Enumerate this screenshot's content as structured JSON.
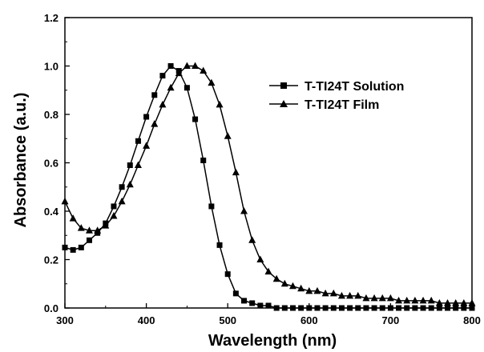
{
  "chart_data": {
    "type": "line",
    "xlabel": "Wavelength (nm)",
    "ylabel": "Absorbance (a.u.)",
    "xlim": [
      300,
      800
    ],
    "ylim": [
      0.0,
      1.2
    ],
    "xticks": [
      "300",
      "400",
      "500",
      "600",
      "700",
      "800"
    ],
    "yticks": [
      "0.0",
      "0.2",
      "0.4",
      "0.6",
      "0.8",
      "1.0",
      "1.2"
    ],
    "grid": false,
    "legend_position": "top-right",
    "series": [
      {
        "name": "T-TI24T Solution",
        "marker": "square",
        "x": [
          300,
          310,
          320,
          330,
          340,
          350,
          360,
          370,
          380,
          390,
          400,
          410,
          420,
          430,
          440,
          450,
          460,
          470,
          480,
          490,
          500,
          510,
          520,
          530,
          540,
          550,
          560,
          570,
          580,
          590,
          600,
          610,
          620,
          630,
          640,
          650,
          660,
          670,
          680,
          690,
          700,
          710,
          720,
          730,
          740,
          750,
          760,
          770,
          780,
          790,
          800
        ],
        "y": [
          0.25,
          0.24,
          0.25,
          0.28,
          0.31,
          0.35,
          0.42,
          0.5,
          0.59,
          0.69,
          0.79,
          0.88,
          0.96,
          1.0,
          0.98,
          0.91,
          0.78,
          0.61,
          0.42,
          0.26,
          0.14,
          0.06,
          0.03,
          0.02,
          0.01,
          0.01,
          0.0,
          0.0,
          0.0,
          0.0,
          0.0,
          0.0,
          0.0,
          0.0,
          0.0,
          0.0,
          0.0,
          0.0,
          0.0,
          0.0,
          0.0,
          0.0,
          0.0,
          0.0,
          0.0,
          0.0,
          0.0,
          0.0,
          0.0,
          0.0,
          0.0
        ]
      },
      {
        "name": "T-TI24T Film",
        "marker": "triangle",
        "x": [
          300,
          310,
          320,
          330,
          340,
          350,
          360,
          370,
          380,
          390,
          400,
          410,
          420,
          430,
          440,
          450,
          460,
          470,
          480,
          490,
          500,
          510,
          520,
          530,
          540,
          550,
          560,
          570,
          580,
          590,
          600,
          610,
          620,
          630,
          640,
          650,
          660,
          670,
          680,
          690,
          700,
          710,
          720,
          730,
          740,
          750,
          760,
          770,
          780,
          790,
          800
        ],
        "y": [
          0.44,
          0.37,
          0.33,
          0.32,
          0.32,
          0.34,
          0.38,
          0.44,
          0.51,
          0.59,
          0.67,
          0.76,
          0.84,
          0.91,
          0.97,
          1.0,
          1.0,
          0.98,
          0.93,
          0.84,
          0.71,
          0.56,
          0.4,
          0.28,
          0.2,
          0.15,
          0.12,
          0.1,
          0.09,
          0.08,
          0.07,
          0.07,
          0.06,
          0.06,
          0.05,
          0.05,
          0.05,
          0.04,
          0.04,
          0.04,
          0.04,
          0.03,
          0.03,
          0.03,
          0.03,
          0.03,
          0.02,
          0.02,
          0.02,
          0.02,
          0.02
        ]
      }
    ]
  }
}
